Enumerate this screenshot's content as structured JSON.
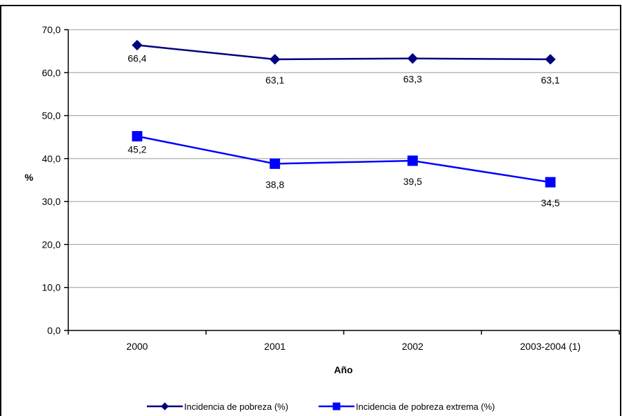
{
  "chart_data": {
    "type": "line",
    "categories": [
      "2000",
      "2001",
      "2002",
      "2003-2004 (1)"
    ],
    "series": [
      {
        "name": "Incidencia de pobreza (%)",
        "values": [
          66.4,
          63.1,
          63.3,
          63.1
        ],
        "labels": [
          "66,4",
          "63,1",
          "63,3",
          "63,1"
        ],
        "color": "#000080",
        "marker": "diamond"
      },
      {
        "name": "Incidencia de pobreza extrema (%)",
        "values": [
          45.2,
          38.8,
          39.5,
          34.5
        ],
        "labels": [
          "45,2",
          "38,8",
          "39,5",
          "34,5"
        ],
        "color": "#0000FF",
        "marker": "square"
      }
    ],
    "xlabel": "Año",
    "ylabel": "%",
    "ylim": [
      0,
      70
    ],
    "yticks": [
      "0,0",
      "10,0",
      "20,0",
      "30,0",
      "40,0",
      "50,0",
      "60,0",
      "70,0"
    ],
    "grid": true,
    "legend_position": "bottom"
  }
}
